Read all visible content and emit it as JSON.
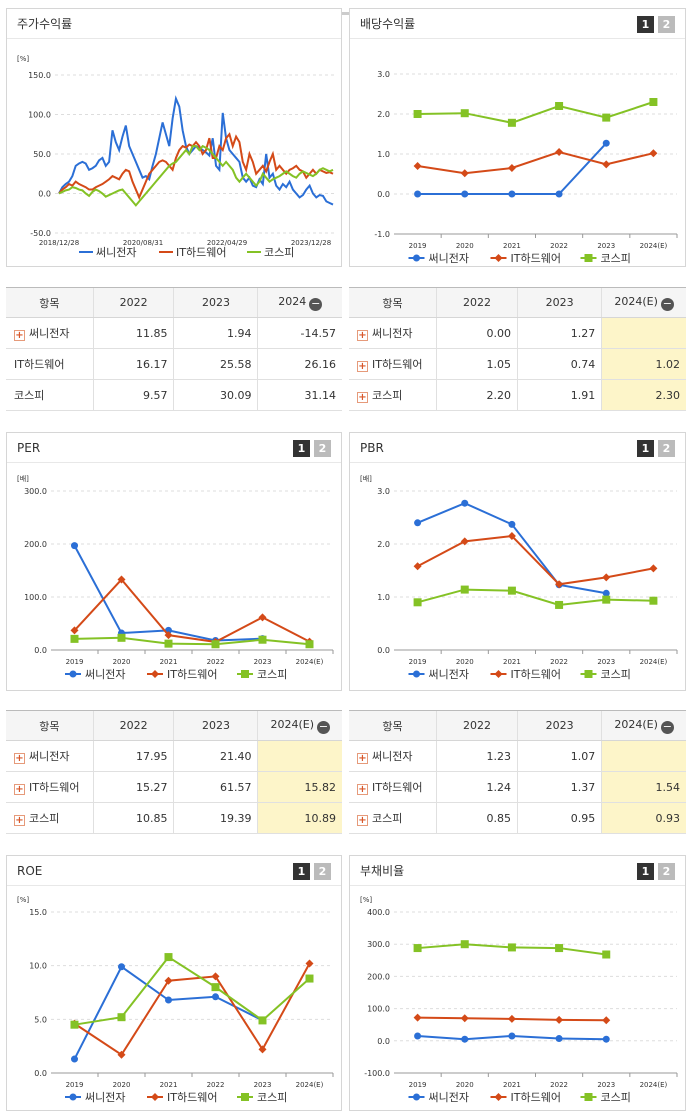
{
  "series_names": [
    "써니전자",
    "IT하드웨어",
    "코스피"
  ],
  "colors": {
    "s1": "#2b6fd6",
    "s2": "#d44a18",
    "s3": "#84c225"
  },
  "tabs": [
    "1",
    "2"
  ],
  "stock_return": {
    "title": "주가수익률",
    "chart_data": {
      "type": "line",
      "unit": "[%]",
      "yticks": [
        "150.0",
        "100.0",
        "50.0",
        "0.0",
        "-50.0"
      ],
      "ylim": [
        -50,
        150
      ],
      "xticks": [
        "2018/12/28",
        "2020/08/31",
        "2022/04/29",
        "2023/12/28"
      ],
      "series": [
        {
          "name": "써니전자",
          "values": [
            0,
            8,
            12,
            15,
            22,
            35,
            38,
            40,
            38,
            30,
            32,
            35,
            42,
            45,
            35,
            40,
            80,
            65,
            55,
            72,
            86,
            60,
            50,
            40,
            30,
            20,
            22,
            18,
            35,
            50,
            70,
            90,
            75,
            60,
            95,
            120,
            110,
            80,
            60,
            50,
            55,
            60,
            58,
            55,
            52,
            48,
            70,
            35,
            30,
            102,
            70,
            55,
            50,
            45,
            40,
            20,
            15,
            20,
            10,
            8,
            18,
            12,
            50,
            20,
            25,
            10,
            5,
            12,
            8,
            15,
            5,
            0,
            -5,
            -2,
            5,
            10,
            0,
            -5,
            -2,
            -3,
            -10,
            -12,
            -14
          ]
        },
        {
          "name": "IT하드웨어",
          "values": [
            0,
            5,
            8,
            12,
            10,
            15,
            12,
            10,
            8,
            5,
            5,
            8,
            10,
            12,
            15,
            18,
            22,
            20,
            18,
            25,
            30,
            28,
            15,
            5,
            -5,
            5,
            15,
            25,
            30,
            35,
            40,
            42,
            40,
            35,
            30,
            45,
            55,
            60,
            58,
            62,
            60,
            65,
            60,
            50,
            55,
            70,
            45,
            45,
            60,
            55,
            70,
            75,
            60,
            72,
            65,
            40,
            30,
            50,
            40,
            25,
            30,
            35,
            28,
            40,
            50,
            30,
            35,
            30,
            25,
            30,
            32,
            35,
            30,
            28,
            20,
            25,
            30,
            25,
            30,
            28,
            26,
            27,
            25
          ]
        },
        {
          "name": "코스피",
          "values": [
            0,
            2,
            4,
            5,
            8,
            7,
            5,
            4,
            0,
            -3,
            2,
            5,
            3,
            0,
            -4,
            -2,
            0,
            2,
            4,
            5,
            0,
            -5,
            -10,
            -15,
            -10,
            -5,
            0,
            5,
            10,
            15,
            20,
            25,
            30,
            35,
            38,
            40,
            45,
            50,
            55,
            50,
            60,
            60,
            55,
            60,
            58,
            55,
            50,
            45,
            40,
            35,
            40,
            35,
            30,
            20,
            15,
            20,
            25,
            20,
            15,
            10,
            15,
            25,
            20,
            15,
            18,
            20,
            22,
            25,
            28,
            25,
            22,
            20,
            25,
            28,
            26,
            24,
            22,
            25,
            30,
            32,
            30,
            28,
            30
          ]
        }
      ]
    }
  },
  "dividend_yield": {
    "title": "배당수익률",
    "chart_data": {
      "type": "line",
      "yticks": [
        "3.0",
        "2.0",
        "1.0",
        "0.0",
        "-1.0"
      ],
      "ylim": [
        -1,
        3
      ],
      "categories": [
        "2019",
        "2020",
        "2021",
        "2022",
        "2023",
        "2024(E)"
      ],
      "series": [
        {
          "name": "써니전자",
          "values": [
            0.0,
            0.0,
            0.0,
            0.0,
            1.27,
            null
          ]
        },
        {
          "name": "IT하드웨어",
          "values": [
            0.7,
            0.52,
            0.65,
            1.05,
            0.74,
            1.02
          ]
        },
        {
          "name": "코스피",
          "values": [
            2.0,
            2.02,
            1.78,
            2.2,
            1.91,
            2.3
          ]
        }
      ]
    }
  },
  "per": {
    "title": "PER",
    "chart_data": {
      "type": "line",
      "unit": "[배]",
      "yticks": [
        "300.0",
        "200.0",
        "100.0",
        "0.0"
      ],
      "ylim": [
        0,
        300
      ],
      "categories": [
        "2019",
        "2020",
        "2021",
        "2022",
        "2023",
        "2024(E)"
      ],
      "series": [
        {
          "name": "써니전자",
          "values": [
            197,
            32,
            37,
            17.95,
            21.4,
            null
          ]
        },
        {
          "name": "IT하드웨어",
          "values": [
            37,
            133,
            28,
            15.27,
            61.57,
            15.82
          ]
        },
        {
          "name": "코스피",
          "values": [
            21,
            23,
            12,
            10.85,
            19.39,
            10.89
          ]
        }
      ]
    }
  },
  "pbr": {
    "title": "PBR",
    "chart_data": {
      "type": "line",
      "unit": "[배]",
      "yticks": [
        "3.0",
        "2.0",
        "1.0",
        "0.0"
      ],
      "ylim": [
        0,
        3
      ],
      "categories": [
        "2019",
        "2020",
        "2021",
        "2022",
        "2023",
        "2024(E)"
      ],
      "series": [
        {
          "name": "써니전자",
          "values": [
            2.4,
            2.77,
            2.37,
            1.23,
            1.07,
            null
          ]
        },
        {
          "name": "IT하드웨어",
          "values": [
            1.58,
            2.05,
            2.15,
            1.24,
            1.37,
            1.54
          ]
        },
        {
          "name": "코스피",
          "values": [
            0.9,
            1.14,
            1.12,
            0.85,
            0.95,
            0.93
          ]
        }
      ]
    }
  },
  "roe": {
    "title": "ROE",
    "chart_data": {
      "type": "line",
      "unit": "[%]",
      "yticks": [
        "15.0",
        "10.0",
        "5.0",
        "0.0"
      ],
      "ylim": [
        0,
        15
      ],
      "categories": [
        "2019",
        "2020",
        "2021",
        "2022",
        "2023",
        "2024(E)"
      ],
      "series": [
        {
          "name": "써니전자",
          "values": [
            1.3,
            9.9,
            6.8,
            7.1,
            4.9,
            null
          ]
        },
        {
          "name": "IT하드웨어",
          "values": [
            4.6,
            1.7,
            8.6,
            9.0,
            2.2,
            10.2
          ]
        },
        {
          "name": "코스피",
          "values": [
            4.5,
            5.2,
            10.8,
            8.0,
            4.9,
            8.8
          ]
        }
      ]
    }
  },
  "debt_ratio": {
    "title": "부채비율",
    "chart_data": {
      "type": "line",
      "unit": "[%]",
      "yticks": [
        "400.0",
        "300.0",
        "200.0",
        "100.0",
        "0.0",
        "-100.0"
      ],
      "ylim": [
        -100,
        400
      ],
      "categories": [
        "2019",
        "2020",
        "2021",
        "2022",
        "2023",
        "2024(E)"
      ],
      "series": [
        {
          "name": "써니전자",
          "values": [
            15,
            5,
            15,
            7,
            5,
            null
          ]
        },
        {
          "name": "IT하드웨어",
          "values": [
            72,
            70,
            68,
            65,
            64,
            null
          ]
        },
        {
          "name": "코스피",
          "values": [
            288,
            300,
            290,
            288,
            268,
            null
          ]
        }
      ]
    }
  },
  "tables": {
    "stock_return": {
      "headers": [
        "항목",
        "2022",
        "2023",
        "2024"
      ],
      "rows": [
        {
          "name": "써니전자",
          "plus": true,
          "v": [
            "11.85",
            "1.94",
            "-14.57"
          ]
        },
        {
          "name": "IT하드웨어",
          "plus": false,
          "v": [
            "16.17",
            "25.58",
            "26.16"
          ]
        },
        {
          "name": "코스피",
          "plus": false,
          "v": [
            "9.57",
            "30.09",
            "31.14"
          ]
        }
      ]
    },
    "dividend_yield": {
      "headers": [
        "항목",
        "2022",
        "2023",
        "2024(E)"
      ],
      "rows": [
        {
          "name": "써니전자",
          "plus": true,
          "v": [
            "0.00",
            "1.27",
            ""
          ]
        },
        {
          "name": "IT하드웨어",
          "plus": true,
          "v": [
            "1.05",
            "0.74",
            "1.02"
          ]
        },
        {
          "name": "코스피",
          "plus": true,
          "v": [
            "2.20",
            "1.91",
            "2.30"
          ]
        }
      ]
    },
    "per": {
      "headers": [
        "항목",
        "2022",
        "2023",
        "2024(E)"
      ],
      "rows": [
        {
          "name": "써니전자",
          "plus": true,
          "v": [
            "17.95",
            "21.40",
            ""
          ]
        },
        {
          "name": "IT하드웨어",
          "plus": true,
          "v": [
            "15.27",
            "61.57",
            "15.82"
          ]
        },
        {
          "name": "코스피",
          "plus": true,
          "v": [
            "10.85",
            "19.39",
            "10.89"
          ]
        }
      ]
    },
    "pbr": {
      "headers": [
        "항목",
        "2022",
        "2023",
        "2024(E)"
      ],
      "rows": [
        {
          "name": "써니전자",
          "plus": true,
          "v": [
            "1.23",
            "1.07",
            ""
          ]
        },
        {
          "name": "IT하드웨어",
          "plus": true,
          "v": [
            "1.24",
            "1.37",
            "1.54"
          ]
        },
        {
          "name": "코스피",
          "plus": true,
          "v": [
            "0.85",
            "0.95",
            "0.93"
          ]
        }
      ]
    }
  }
}
